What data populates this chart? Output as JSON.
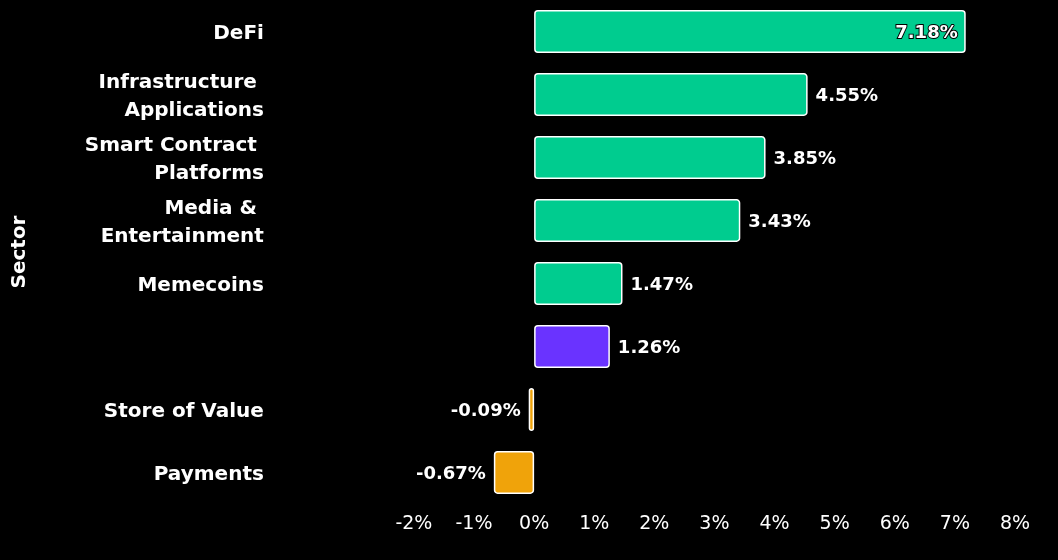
{
  "chart_data": {
    "type": "bar",
    "orientation": "horizontal",
    "ylabel": "Sector",
    "categories": [
      "DeFi",
      "Infrastructure Applications",
      "Smart Contract Platforms",
      "Media & Entertainment",
      "Memecoins",
      null,
      "Store of Value",
      "Payments"
    ],
    "values": [
      7.18,
      4.55,
      3.85,
      3.43,
      1.47,
      1.26,
      -0.09,
      -0.67
    ],
    "value_labels": [
      "7.18%",
      "4.55%",
      "3.85%",
      "3.43%",
      "1.47%",
      "1.26%",
      "-0.09%",
      "-0.67%"
    ],
    "colors": [
      "#00cc8f",
      "#00cc8f",
      "#00cc8f",
      "#00cc8f",
      "#00cc8f",
      "#6a33ff",
      "#f0a30a",
      "#f0a30a"
    ],
    "xlim": [
      -2,
      8
    ],
    "xticks": [
      {
        "value": -2,
        "label": "-2%"
      },
      {
        "value": -1,
        "label": "-1%"
      },
      {
        "value": 0,
        "label": "0%"
      },
      {
        "value": 1,
        "label": "1%"
      },
      {
        "value": 2,
        "label": "2%"
      },
      {
        "value": 3,
        "label": "3%"
      },
      {
        "value": 4,
        "label": "4%"
      },
      {
        "value": 5,
        "label": "5%"
      },
      {
        "value": 6,
        "label": "6%"
      },
      {
        "value": 7,
        "label": "7%"
      },
      {
        "value": 8,
        "label": "8%"
      }
    ],
    "grid": false
  }
}
